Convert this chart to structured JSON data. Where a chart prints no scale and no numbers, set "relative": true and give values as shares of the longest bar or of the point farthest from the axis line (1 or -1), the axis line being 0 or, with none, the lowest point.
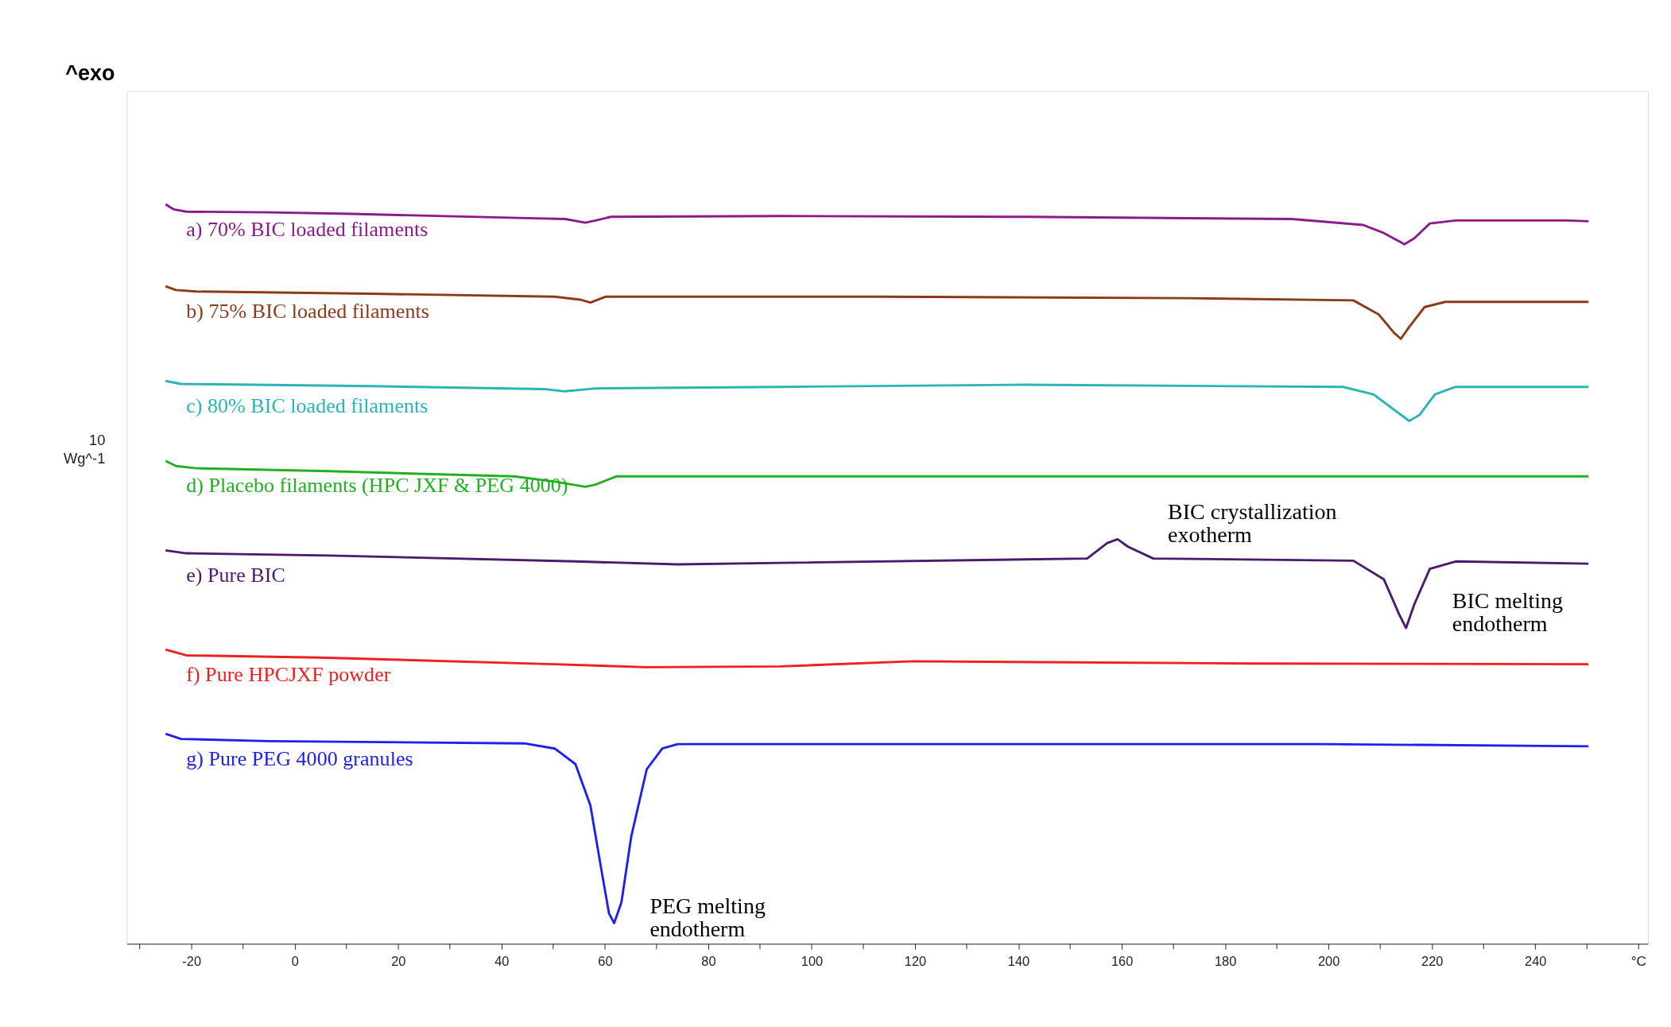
{
  "chart_data": {
    "type": "line",
    "relative": true,
    "xlabel": "°C",
    "grid": false,
    "legend": false,
    "marker": "none",
    "line_style": "solid",
    "xlim": [
      -32.5,
      261.8
    ],
    "xticks": [
      {
        "value": -30,
        "label": null
      },
      -20,
      {
        "value": -10,
        "label": null
      },
      0,
      {
        "value": 10,
        "label": null
      },
      20,
      {
        "value": 30,
        "label": null
      },
      40,
      {
        "value": 50,
        "label": null
      },
      60,
      {
        "value": 70,
        "label": null
      },
      80,
      {
        "value": 90,
        "label": null
      },
      100,
      {
        "value": 110,
        "label": null
      },
      120,
      {
        "value": 130,
        "label": null
      },
      140,
      {
        "value": 150,
        "label": null
      },
      160,
      {
        "value": 170,
        "label": null
      },
      180,
      {
        "value": 190,
        "label": null
      },
      200,
      {
        "value": 210,
        "label": null
      },
      220,
      {
        "value": 230,
        "label": null
      },
      240,
      {
        "value": 250,
        "label": null
      },
      {
        "value": 260,
        "label": null
      }
    ],
    "series": [
      {
        "name": "a)   70% BIC loaded filaments",
        "color": "#8b1a8b",
        "x": [
          -25,
          -23.4,
          -21,
          -5.1,
          10.7,
          46.3,
          52.3,
          56.2,
          58.2,
          61.2,
          93.9,
          141.4,
          192.9,
          206.7,
          210.7,
          214.7,
          216.6,
          219.6,
          224.6,
          246.3,
          250.3
        ],
        "values": [
          1.0,
          0.993,
          0.99,
          0.989,
          0.987,
          0.981,
          0.98,
          0.975,
          0.978,
          0.983,
          0.984,
          0.983,
          0.98,
          0.972,
          0.961,
          0.946,
          0.954,
          0.974,
          0.978,
          0.978,
          0.977
        ]
      },
      {
        "name": "b) 75% BIC loaded filaments",
        "color": "#8b3a1a",
        "x": [
          -25,
          -23,
          -19,
          14.7,
          50.3,
          55.2,
          57.2,
          60.2,
          113.7,
          173,
          204.8,
          209.7,
          212.7,
          214,
          215.6,
          218.6,
          222.6,
          250.3
        ],
        "values": [
          0.889,
          0.884,
          0.882,
          0.879,
          0.875,
          0.871,
          0.867,
          0.875,
          0.875,
          0.873,
          0.87,
          0.851,
          0.826,
          0.818,
          0.834,
          0.861,
          0.868,
          0.868
        ]
      },
      {
        "name": "c) 80% BIC  loaded filaments",
        "color": "#2ab5b5",
        "x": [
          -25,
          -22,
          14.7,
          48.3,
          52.3,
          58.2,
          93.9,
          141.4,
          202.8,
          208.7,
          212.7,
          215.6,
          217.6,
          220.6,
          224.6,
          250.3
        ],
        "values": [
          0.761,
          0.757,
          0.754,
          0.75,
          0.747,
          0.751,
          0.753,
          0.756,
          0.753,
          0.743,
          0.722,
          0.707,
          0.715,
          0.743,
          0.753,
          0.753
        ]
      },
      {
        "name": "d) Placebo filaments (HPC JXF & PEG 4000)",
        "color": "#22b022",
        "x": [
          -25,
          -23,
          -19,
          6.7,
          42.4,
          50.3,
          56.2,
          58.2,
          62.2,
          250.3
        ],
        "values": [
          0.653,
          0.646,
          0.643,
          0.639,
          0.632,
          0.625,
          0.618,
          0.621,
          0.632,
          0.632
        ]
      },
      {
        "name": "e) Pure BIC",
        "color": "#4b1a6b",
        "x": [
          -25,
          -21,
          6.7,
          54.3,
          74.1,
          93.9,
          153.3,
          157.2,
          159.2,
          161.2,
          166.1,
          204.8,
          210.7,
          213.7,
          215,
          216.6,
          219.6,
          224.6,
          250.3
        ],
        "values": [
          0.532,
          0.528,
          0.525,
          0.517,
          0.513,
          0.515,
          0.521,
          0.542,
          0.547,
          0.537,
          0.521,
          0.518,
          0.493,
          0.445,
          0.427,
          0.459,
          0.507,
          0.517,
          0.514
        ]
      },
      {
        "name": "f) Pure HPCJXF powder",
        "color": "#ee2020",
        "x": [
          -25,
          -21,
          4.8,
          50.3,
          68.1,
          93.9,
          119.6,
          185,
          250.3
        ],
        "values": [
          0.398,
          0.39,
          0.387,
          0.378,
          0.374,
          0.375,
          0.382,
          0.379,
          0.378
        ]
      },
      {
        "name": "g) Pure PEG 4000 granules",
        "color": "#2020ee",
        "x": [
          -25,
          -22,
          -5.1,
          44.4,
          50.3,
          54.3,
          57.2,
          59.2,
          60.8,
          61.8,
          63.2,
          65.1,
          68.1,
          71.1,
          74.1,
          198.8,
          250.3
        ],
        "values": [
          0.284,
          0.277,
          0.274,
          0.271,
          0.264,
          0.243,
          0.187,
          0.105,
          0.041,
          0.028,
          0.056,
          0.145,
          0.236,
          0.264,
          0.27,
          0.27,
          0.267
        ]
      }
    ],
    "annotations": [
      "^exo",
      "10\nWg^-1",
      {
        "text": "BIC crystallization\nexotherm",
        "x": 160,
        "y": 0.547
      },
      {
        "text": "BIC melting\nendotherm",
        "x": 215,
        "y": 0.427
      },
      {
        "text": "PEG melting\nendotherm",
        "x": 62,
        "y": 0.028
      }
    ]
  }
}
